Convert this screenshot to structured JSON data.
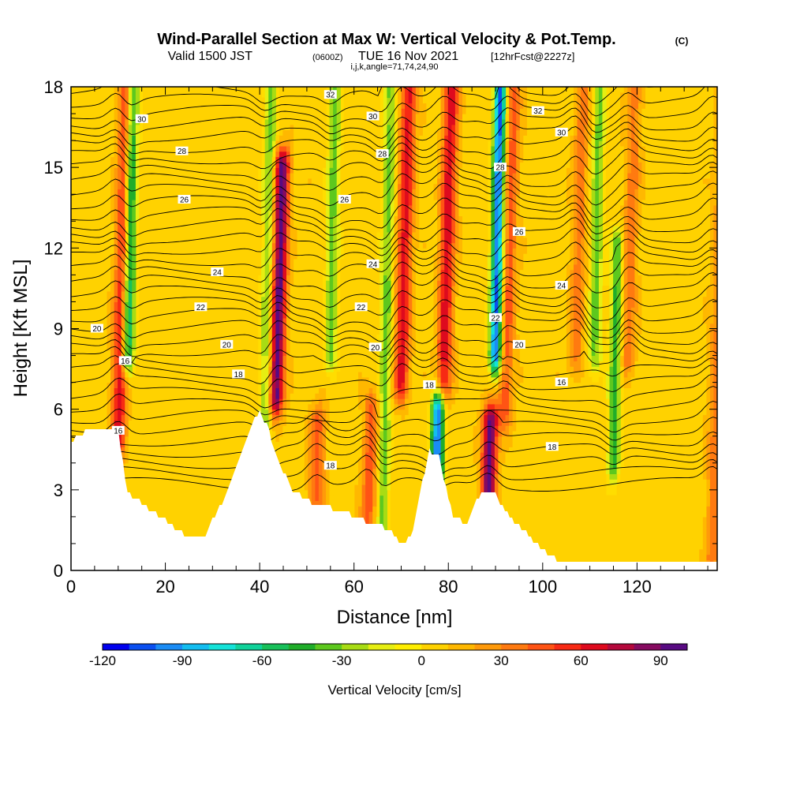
{
  "header": {
    "title": "Wind-Parallel Section at Max W: Vertical Velocity & Pot.Temp.",
    "title_tag": "(C)",
    "subtitle_valid": "Valid 1500 JST",
    "subtitle_utc": "(0600Z)",
    "subtitle_date": "TUE 16 Nov 2021",
    "subtitle_fcst": "[12hrFcst@2227z]",
    "subtitle_index": "i,j,k,angle=71,74,24,90"
  },
  "chart_data": {
    "type": "heatmap",
    "xlabel": "Distance [nm]",
    "ylabel": "Height [Kft MSL]",
    "xlim": [
      0,
      137
    ],
    "ylim": [
      0,
      18
    ],
    "x_ticks": [
      "0",
      "20",
      "40",
      "60",
      "80",
      "100",
      "120"
    ],
    "y_ticks": [
      "0",
      "3",
      "6",
      "9",
      "12",
      "15",
      "18"
    ],
    "colorbar": {
      "label": "Vertical Velocity [cm/s]",
      "min": -120,
      "max": 100,
      "step": 10,
      "tick_labels": [
        "-120",
        "-90",
        "-60",
        "-30",
        "0",
        "30",
        "60",
        "90"
      ],
      "colors": [
        "#0000ee",
        "#0a4ff0",
        "#1a8cf5",
        "#13bdf0",
        "#14e2d8",
        "#10d29a",
        "#18c05a",
        "#20ad2a",
        "#5dc81e",
        "#a8dc14",
        "#e6ee12",
        "#ffee00",
        "#ffd200",
        "#ffb800",
        "#ff9a0a",
        "#ff7a10",
        "#ff5414",
        "#f72a14",
        "#de0a1e",
        "#b4083c",
        "#860a60",
        "#580a82"
      ]
    },
    "updrafts": [
      {
        "x": 10,
        "y_bottom": 4.8,
        "y_top": 18,
        "w_max": 60
      },
      {
        "x": 43.5,
        "y_bottom": 6.5,
        "y_top": 15,
        "w_max": 90
      },
      {
        "x": 52,
        "y_bottom": 2.8,
        "y_top": 5.5,
        "w_max": 40
      },
      {
        "x": 63,
        "y_bottom": 1.5,
        "y_top": 6,
        "w_max": 40
      },
      {
        "x": 70,
        "y_bottom": 7,
        "y_top": 18,
        "w_max": 60
      },
      {
        "x": 79,
        "y_bottom": 7,
        "y_top": 18,
        "w_max": 60
      },
      {
        "x": 88.5,
        "y_bottom": 2.8,
        "y_top": 5.5,
        "w_max": 90
      },
      {
        "x": 92,
        "y_bottom": 6,
        "y_top": 18,
        "w_max": 40
      },
      {
        "x": 107,
        "y_bottom": 8,
        "y_top": 18,
        "w_max": 30
      },
      {
        "x": 118,
        "y_bottom": 8,
        "y_top": 18,
        "w_max": 30
      },
      {
        "x": 136,
        "y_bottom": 0.5,
        "y_top": 18,
        "w_max": 30
      }
    ],
    "downdrafts": [
      {
        "x": 12,
        "y_bottom": 8,
        "y_top": 18,
        "w_min": -80
      },
      {
        "x": 41,
        "y_bottom": 4,
        "y_top": 18,
        "w_min": -40
      },
      {
        "x": 55,
        "y_bottom": 8,
        "y_top": 18,
        "w_min": -40
      },
      {
        "x": 66,
        "y_bottom": 1,
        "y_top": 18,
        "w_min": -40
      },
      {
        "x": 77.5,
        "y_bottom": 3,
        "y_top": 6,
        "w_min": -110
      },
      {
        "x": 90,
        "y_bottom": 8,
        "y_top": 18,
        "w_min": -110
      },
      {
        "x": 111,
        "y_bottom": 8,
        "y_top": 18,
        "w_min": -40
      },
      {
        "x": 115,
        "y_bottom": 4,
        "y_top": 12,
        "w_min": -50
      }
    ],
    "terrain_profile_x": [
      0,
      3,
      10,
      12,
      25,
      28,
      32,
      38,
      40,
      42,
      44,
      47,
      51,
      58,
      63,
      68,
      70,
      72,
      76,
      78,
      81,
      84,
      87,
      90,
      94,
      100,
      104,
      110,
      120,
      130,
      137
    ],
    "terrain_profile_y": [
      4.8,
      5.2,
      5.2,
      2.9,
      1.2,
      1.2,
      2.5,
      5.3,
      6,
      5.2,
      4,
      3,
      2.5,
      2.2,
      1.8,
      1.5,
      1,
      1.2,
      4.5,
      4.2,
      2,
      1.7,
      3,
      2.8,
      1.8,
      0.8,
      0.3,
      0.3,
      0.3,
      0.3,
      0.3
    ],
    "contour_series": [
      {
        "name": "theta",
        "values": [
          16,
          18,
          20,
          22,
          24,
          26,
          28,
          30,
          32
        ]
      }
    ],
    "contour_labels": [
      {
        "text": "32",
        "x": 55,
        "y": 17.7
      },
      {
        "text": "30",
        "x": 15,
        "y": 16.8
      },
      {
        "text": "30",
        "x": 64,
        "y": 16.9
      },
      {
        "text": "32",
        "x": 99,
        "y": 17.1
      },
      {
        "text": "30",
        "x": 104,
        "y": 16.3
      },
      {
        "text": "28",
        "x": 23.5,
        "y": 15.6
      },
      {
        "text": "28",
        "x": 66,
        "y": 15.5
      },
      {
        "text": "28",
        "x": 91,
        "y": 15.0
      },
      {
        "text": "26",
        "x": 24,
        "y": 13.8
      },
      {
        "text": "26",
        "x": 58,
        "y": 13.8
      },
      {
        "text": "26",
        "x": 95,
        "y": 12.6
      },
      {
        "text": "24",
        "x": 31,
        "y": 11.1
      },
      {
        "text": "24",
        "x": 64,
        "y": 11.4
      },
      {
        "text": "24",
        "x": 104,
        "y": 10.6
      },
      {
        "text": "22",
        "x": 27.5,
        "y": 9.8
      },
      {
        "text": "22",
        "x": 61.5,
        "y": 9.8
      },
      {
        "text": "22",
        "x": 90,
        "y": 9.4
      },
      {
        "text": "20",
        "x": 5.5,
        "y": 9.0
      },
      {
        "text": "20",
        "x": 33,
        "y": 8.4
      },
      {
        "text": "20",
        "x": 64.5,
        "y": 8.3
      },
      {
        "text": "20",
        "x": 95,
        "y": 8.4
      },
      {
        "text": "16",
        "x": 11.5,
        "y": 7.8
      },
      {
        "text": "18",
        "x": 35.5,
        "y": 7.3
      },
      {
        "text": "18",
        "x": 76,
        "y": 6.9
      },
      {
        "text": "16",
        "x": 104,
        "y": 7.0
      },
      {
        "text": "16",
        "x": 10,
        "y": 5.2
      },
      {
        "text": "18",
        "x": 55,
        "y": 3.9
      },
      {
        "text": "18",
        "x": 102,
        "y": 4.6
      }
    ]
  }
}
